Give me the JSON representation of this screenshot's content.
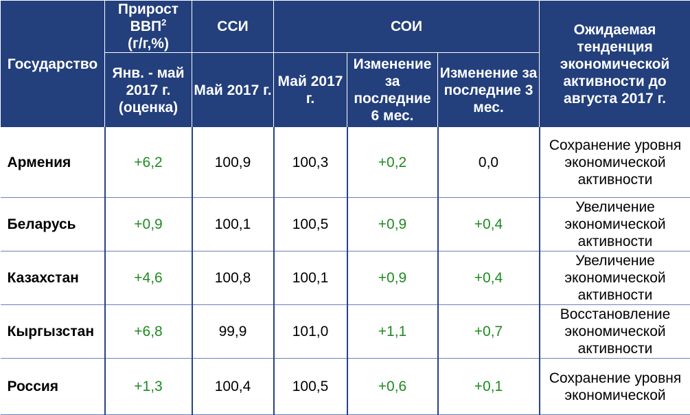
{
  "table": {
    "header": {
      "state": "Государство",
      "gdp_line1": "Прирост",
      "gdp_line2": "ВВП",
      "gdp_sup": "2",
      "gdp_line3": "(г/г,%)",
      "gdp_sub": "Янв. - май 2017 г. (оценка)",
      "ssi": "ССИ",
      "ssi_sub": "Май 2017 г.",
      "soi": "СОИ",
      "soi_sub1": "Май 2017 г.",
      "soi_sub2": "Изменение за последние 6 мес.",
      "soi_sub3": "Изменение за последние 3 мес.",
      "trend": "Ожидаемая тенденция экономической активности до августа 2017 г."
    },
    "rows": [
      {
        "country": "Армения",
        "gdp": "+6,2",
        "ssi": "100,9",
        "soi": "100,3",
        "ch6": "+0,2",
        "ch3": "0,0",
        "trend": "Сохранение уровня экономической активности"
      },
      {
        "country": "Беларусь",
        "gdp": "+0,9",
        "ssi": "100,1",
        "soi": "100,5",
        "ch6": "+0,9",
        "ch3": "+0,4",
        "trend": "Увеличение экономической активности"
      },
      {
        "country": "Казахстан",
        "gdp": "+4,6",
        "ssi": "100,8",
        "soi": "100,1",
        "ch6": "+0,9",
        "ch3": "+0,4",
        "trend": "Увеличение экономической активности"
      },
      {
        "country": "Кыргызстан",
        "gdp": "+6,8",
        "ssi": "99,9",
        "soi": "101,0",
        "ch6": "+1,1",
        "ch3": "+0,7",
        "trend": "Восстановление экономической активности"
      },
      {
        "country": "Россия",
        "gdp": "+1,3",
        "ssi": "100,4",
        "soi": "100,5",
        "ch6": "+0,6",
        "ch3": "+0,1",
        "trend": "Сохранение уровня экономической"
      }
    ]
  },
  "colors": {
    "header_bg": "#233f7c",
    "header_text": "#ffffff",
    "positive_value": "#1f8a1f",
    "border": "#27408b"
  }
}
